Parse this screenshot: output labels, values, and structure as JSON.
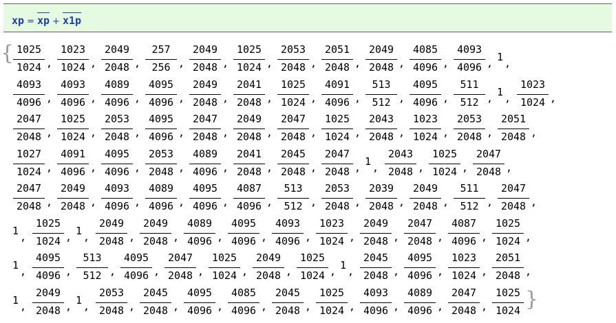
{
  "input": {
    "lhs": "xp",
    "equals": "=",
    "term1": "xp",
    "plus": "+",
    "term2": "x1p"
  },
  "output": {
    "open_brace": "{",
    "close_brace": "}",
    "rows": [
      [
        "1025/1024",
        "1023/1024",
        "2049/2048",
        "257/256",
        "2049/2048",
        "1025/1024",
        "2053/2048",
        "2051/2048",
        "2049/2048",
        "4085/4096",
        "4093/4096",
        "1"
      ],
      [
        "4093/4096",
        "4093/4096",
        "4089/4096",
        "4095/4096",
        "2049/2048",
        "2041/2048",
        "1025/1024",
        "4091/4096",
        "513/512",
        "4095/4096",
        "511/512",
        "1",
        "1023/1024"
      ],
      [
        "2047/2048",
        "1025/1024",
        "2053/2048",
        "4095/4096",
        "2047/2048",
        "2049/2048",
        "2047/2048",
        "1025/1024",
        "2043/2048",
        "1023/1024",
        "2053/2048",
        "2051/2048"
      ],
      [
        "1027/1024",
        "4091/4096",
        "4095/4096",
        "2053/2048",
        "4089/4096",
        "2041/2048",
        "2045/2048",
        "2047/2048",
        "1",
        "2043/2048",
        "1025/1024",
        "2047/2048"
      ],
      [
        "2047/2048",
        "2049/2048",
        "4093/4096",
        "4089/4096",
        "4095/4096",
        "4087/4096",
        "513/512",
        "2053/2048",
        "2039/2048",
        "2049/2048",
        "511/512",
        "2047/2048"
      ],
      [
        "1",
        "1025/1024",
        "1",
        "2049/2048",
        "2049/2048",
        "4089/4096",
        "4095/4096",
        "4093/4096",
        "1023/1024",
        "2049/2048",
        "2047/2048",
        "4087/4096",
        "1025/1024"
      ],
      [
        "1",
        "4095/4096",
        "513/512",
        "4095/4096",
        "2047/2048",
        "1025/1024",
        "2049/2048",
        "1025/1024",
        "1",
        "2045/2048",
        "4095/4096",
        "1023/1024",
        "2051/2048"
      ],
      [
        "1",
        "2049/2048",
        "1",
        "2053/2048",
        "2045/2048",
        "4095/4096",
        "4085/4096",
        "2045/2048",
        "1025/1024",
        "4093/4096",
        "4089/4096",
        "2047/2048",
        "1025/1024"
      ]
    ]
  }
}
